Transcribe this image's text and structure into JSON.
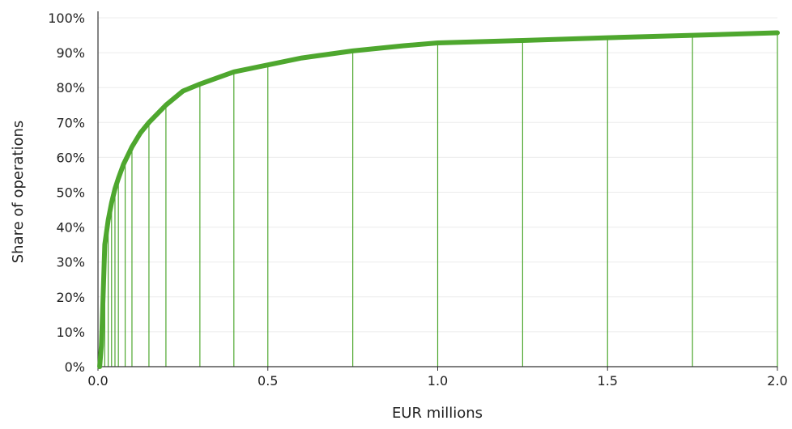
{
  "chart_data": {
    "type": "line",
    "xlabel": "EUR millions",
    "ylabel": "Share of operations",
    "xlim": [
      0,
      2.0
    ],
    "ylim": [
      0,
      100
    ],
    "x_ticks": [
      0.0,
      0.5,
      1.0,
      1.5,
      2.0
    ],
    "x_tick_labels": [
      "0.0",
      "0.5",
      "1.0",
      "1.5",
      "2.0"
    ],
    "y_ticks": [
      0,
      10,
      20,
      30,
      40,
      50,
      60,
      70,
      80,
      90,
      100
    ],
    "y_tick_labels": [
      "0%",
      "10%",
      "20%",
      "30%",
      "40%",
      "50%",
      "60%",
      "70%",
      "80%",
      "90%",
      "100%"
    ],
    "grid": "horizontal",
    "line_color": "#4ea72e",
    "grid_color": "#ececec",
    "series": [
      {
        "x": [
          0.005,
          0.01,
          0.015,
          0.02,
          0.03,
          0.04,
          0.05,
          0.06,
          0.075,
          0.09,
          0.1,
          0.125,
          0.15,
          0.2,
          0.25,
          0.3,
          0.4,
          0.5,
          0.6,
          0.75,
          0.9,
          1.0,
          1.25,
          1.5,
          1.75,
          2.0
        ],
        "y": [
          0,
          6,
          20,
          35,
          42,
          47,
          51,
          54,
          58,
          61,
          63,
          67,
          70,
          75,
          79,
          81,
          84.5,
          86.5,
          88.5,
          90.5,
          92,
          92.8,
          93.5,
          94.3,
          95,
          95.7
        ]
      }
    ],
    "drop_lines": [
      {
        "x": 0.02,
        "y": 35
      },
      {
        "x": 0.03,
        "y": 42
      },
      {
        "x": 0.04,
        "y": 47
      },
      {
        "x": 0.05,
        "y": 51
      },
      {
        "x": 0.06,
        "y": 54
      },
      {
        "x": 0.08,
        "y": 59
      },
      {
        "x": 0.1,
        "y": 63
      },
      {
        "x": 0.15,
        "y": 70
      },
      {
        "x": 0.2,
        "y": 75
      },
      {
        "x": 0.3,
        "y": 81
      },
      {
        "x": 0.4,
        "y": 84.5
      },
      {
        "x": 0.5,
        "y": 86.5
      },
      {
        "x": 0.75,
        "y": 90.5
      },
      {
        "x": 1.0,
        "y": 92.8
      },
      {
        "x": 1.25,
        "y": 93.5
      },
      {
        "x": 1.5,
        "y": 94.3
      },
      {
        "x": 1.75,
        "y": 95
      },
      {
        "x": 2.0,
        "y": 95.7
      }
    ]
  }
}
